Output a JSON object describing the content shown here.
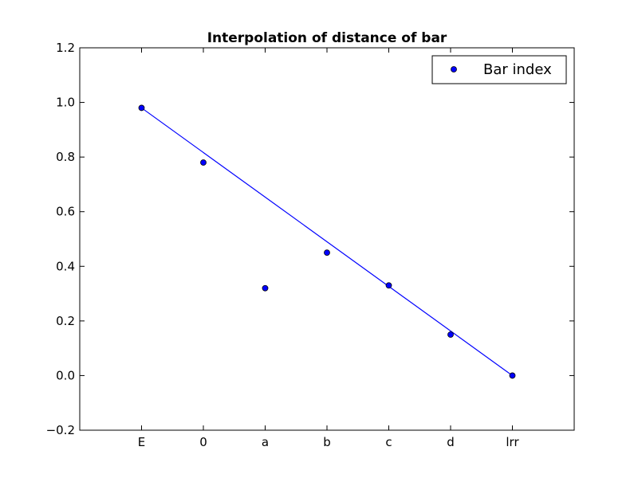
{
  "chart_data": {
    "type": "scatter",
    "title": "Interpolation of distance of bar",
    "xlabel": "",
    "ylabel": "",
    "categories": [
      "E",
      "0",
      "a",
      "b",
      "c",
      "d",
      "lrr"
    ],
    "xlim": [
      -1,
      7
    ],
    "ylim": [
      -0.2,
      1.2
    ],
    "y_ticks": [
      -0.2,
      0.0,
      0.2,
      0.4,
      0.6,
      0.8,
      1.0,
      1.2
    ],
    "y_tick_labels": [
      "−0.2",
      "0.0",
      "0.2",
      "0.4",
      "0.6",
      "0.8",
      "1.0",
      "1.2"
    ],
    "series": [
      {
        "name": "Bar index",
        "kind": "scatter",
        "values": [
          0.98,
          0.78,
          0.32,
          0.45,
          0.33,
          0.15,
          0.0
        ]
      },
      {
        "kind": "line",
        "x": [
          0,
          6
        ],
        "values": [
          0.98,
          0.0
        ]
      }
    ],
    "legend_position": "top-right",
    "grid": false,
    "colors": {
      "marker_fill": "#0000ff",
      "marker_edge": "#000000",
      "line": "#0000ff",
      "axes": "#000000"
    }
  }
}
